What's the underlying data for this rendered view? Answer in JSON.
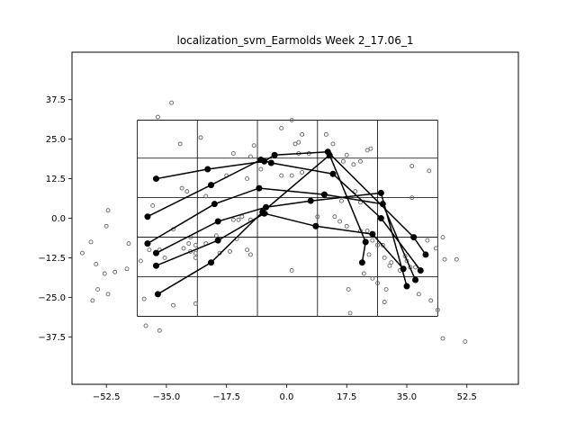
{
  "chart_data": {
    "type": "scatter",
    "title": "localization_svm_Earmolds Week 2_17.06_1",
    "xlabel": "",
    "ylabel": "",
    "xlim": [
      -62.5,
      67.5
    ],
    "ylim": [
      -52.5,
      52.5
    ],
    "xticks": [
      -52.5,
      -35.0,
      -17.5,
      0.0,
      17.5,
      35.0,
      52.5
    ],
    "xtick_labels": [
      "−52.5",
      "−35.0",
      "−17.5",
      "0.0",
      "17.5",
      "35.0",
      "52.5"
    ],
    "yticks": [
      37.5,
      25.0,
      12.5,
      0.0,
      -12.5,
      -25.0,
      -37.5
    ],
    "ytick_labels": [
      "37.5",
      "25.0",
      "12.5",
      "0.0",
      "−12.5",
      "−25.0",
      "−37.5"
    ],
    "grid": {
      "x": [
        -43.5,
        -26,
        -8.5,
        9,
        26.5,
        44
      ],
      "y": [
        31,
        19,
        6.5,
        -6,
        -18.5,
        -31
      ]
    },
    "colors": {
      "line": "#000000",
      "points": "#666666",
      "grid": "#000000"
    },
    "rows": [
      [
        [
          -38,
          12.5
        ],
        [
          -23,
          15.5
        ],
        [
          -6.5,
          18
        ],
        [
          -3.5,
          20
        ],
        [
          12,
          21
        ],
        [
          37,
          -6
        ],
        [
          40.5,
          -11.5
        ]
      ],
      [
        [
          -40.5,
          0.5
        ],
        [
          -22,
          10.5
        ],
        [
          -7.5,
          18.5
        ],
        [
          -4.5,
          17.5
        ],
        [
          13.5,
          14
        ],
        [
          27.5,
          0
        ],
        [
          39,
          -16.5
        ]
      ],
      [
        [
          -40.5,
          -8
        ],
        [
          -21,
          4.5
        ],
        [
          -8,
          9.5
        ],
        [
          11,
          7.5
        ],
        [
          28,
          4.5
        ],
        [
          37.5,
          -19.5
        ]
      ],
      [
        [
          -38,
          -11
        ],
        [
          -20,
          -1
        ],
        [
          -6,
          3.5
        ],
        [
          7,
          5.5
        ],
        [
          27.5,
          8
        ],
        [
          35,
          -21.5
        ]
      ],
      [
        [
          -38,
          -15
        ],
        [
          -20,
          -7
        ],
        [
          -6.5,
          1.5
        ],
        [
          8.5,
          -2.5
        ],
        [
          25,
          -5
        ],
        [
          34,
          -16
        ]
      ],
      [
        [
          -37.5,
          -24
        ],
        [
          -22,
          -14
        ],
        [
          -7,
          2
        ],
        [
          12.5,
          20
        ],
        [
          23,
          -7.5
        ],
        [
          22,
          -14
        ]
      ]
    ],
    "points": [
      [
        -37.5,
        32
      ],
      [
        -33.5,
        36.5
      ],
      [
        -31,
        23.5
      ],
      [
        -25,
        25.5
      ],
      [
        -15.5,
        20.5
      ],
      [
        -9.5,
        23
      ],
      [
        -10.5,
        19.5
      ],
      [
        1.5,
        31
      ],
      [
        -1.5,
        28.5
      ],
      [
        4.5,
        26.5
      ],
      [
        11.5,
        26.5
      ],
      [
        2.5,
        23.5
      ],
      [
        3.5,
        24
      ],
      [
        13.5,
        23.5
      ],
      [
        23.5,
        21.5
      ],
      [
        24.5,
        22
      ],
      [
        -7.5,
        15.5
      ],
      [
        -1.5,
        13.5
      ],
      [
        1.5,
        13.5
      ],
      [
        4.5,
        14.5
      ],
      [
        3.5,
        20.5
      ],
      [
        6.5,
        20.5
      ],
      [
        16.5,
        18
      ],
      [
        17.5,
        20
      ],
      [
        19.5,
        17
      ],
      [
        21.5,
        18
      ],
      [
        36.5,
        16.5
      ],
      [
        41.5,
        15
      ],
      [
        -11.5,
        12.5
      ],
      [
        -17.5,
        13.5
      ],
      [
        -30.5,
        9.5
      ],
      [
        -29,
        8.5
      ],
      [
        -23.5,
        7
      ],
      [
        -39,
        4
      ],
      [
        -52,
        2.5
      ],
      [
        16,
        5.5
      ],
      [
        20,
        8.5
      ],
      [
        21.5,
        5
      ],
      [
        36.5,
        6.5
      ],
      [
        -15.5,
        -0.5
      ],
      [
        -14,
        -0.5
      ],
      [
        -13,
        0.5
      ],
      [
        -10.5,
        -0.5
      ],
      [
        -6,
        1.5
      ],
      [
        9,
        0.5
      ],
      [
        14,
        0.5
      ],
      [
        15.5,
        -1
      ],
      [
        17.5,
        -2.5
      ],
      [
        21.5,
        -4
      ],
      [
        23.5,
        -4
      ],
      [
        -52.5,
        -2.5
      ],
      [
        -33,
        -3.5
      ],
      [
        -28,
        -6
      ],
      [
        -20.5,
        -5.5
      ],
      [
        -14.5,
        -6.5
      ],
      [
        -28.5,
        -8
      ],
      [
        -26.5,
        -8.5
      ],
      [
        -23.5,
        -8
      ],
      [
        -19.5,
        -11
      ],
      [
        -16.5,
        -10.5
      ],
      [
        -11.5,
        -10
      ],
      [
        -40,
        -10
      ],
      [
        -37,
        -10
      ],
      [
        -35.5,
        -12.5
      ],
      [
        -30,
        -9.5
      ],
      [
        -28,
        -10.5
      ],
      [
        -26.5,
        -11
      ],
      [
        -26.5,
        -12.5
      ],
      [
        -57,
        -7.5
      ],
      [
        -46,
        -8
      ],
      [
        -42.5,
        -13.5
      ],
      [
        -46.5,
        -16
      ],
      [
        -50,
        -17
      ],
      [
        -53,
        -17.5
      ],
      [
        -55.5,
        -14.5
      ],
      [
        -59.5,
        -11
      ],
      [
        25,
        -7
      ],
      [
        26.5,
        -8.5
      ],
      [
        28,
        -8.5
      ],
      [
        24,
        -11.5
      ],
      [
        28.5,
        -12.5
      ],
      [
        30.5,
        -14
      ],
      [
        30,
        -15
      ],
      [
        34.5,
        -12
      ],
      [
        35,
        -13.5
      ],
      [
        36,
        -15.5
      ],
      [
        41,
        -7
      ],
      [
        43.5,
        -9.5
      ],
      [
        45.5,
        -6
      ],
      [
        46,
        -13
      ],
      [
        49.5,
        -13
      ],
      [
        33,
        -16.5
      ],
      [
        37.5,
        -15.5
      ],
      [
        22.5,
        -17.5
      ],
      [
        25,
        -19
      ],
      [
        29,
        -22.5
      ],
      [
        18,
        -22.5
      ],
      [
        38.5,
        -24
      ],
      [
        42,
        -26
      ],
      [
        44,
        -29
      ],
      [
        26.5,
        -20.5
      ],
      [
        28.5,
        -26.5
      ],
      [
        18.5,
        -30
      ],
      [
        -55,
        -22.5
      ],
      [
        -52,
        -24
      ],
      [
        -56.5,
        -26
      ],
      [
        -41.5,
        -25.5
      ],
      [
        -33,
        -27.5
      ],
      [
        -26.5,
        -27
      ],
      [
        -10.5,
        -11.5
      ],
      [
        1.5,
        -16.5
      ],
      [
        -41,
        -34
      ],
      [
        -37,
        -35.5
      ],
      [
        45.5,
        -38
      ],
      [
        52,
        -39
      ]
    ]
  }
}
